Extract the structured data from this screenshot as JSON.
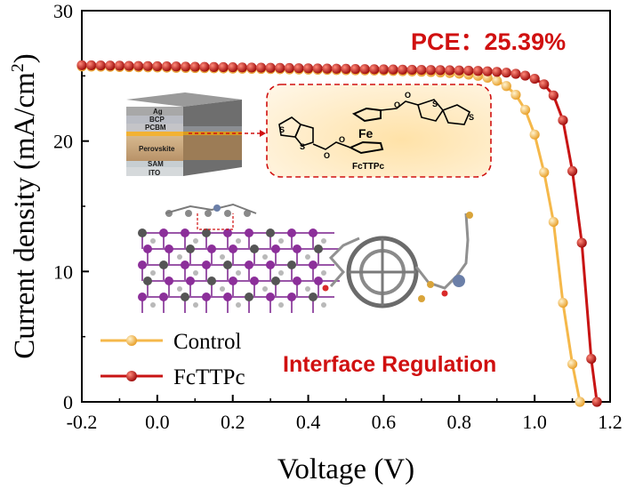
{
  "chart_data": {
    "type": "line",
    "xlabel": "Voltage (V)",
    "ylabel_main": "Current density (mA/cm",
    "ylabel_sup": "2",
    "ylabel_tail": ")",
    "xlim": [
      -0.2,
      1.2
    ],
    "ylim": [
      0,
      30
    ],
    "x_ticks": [
      "-0.2",
      "0.0",
      "0.2",
      "0.4",
      "0.6",
      "0.8",
      "1.0",
      "1.2"
    ],
    "y_ticks": [
      "0",
      "10",
      "20",
      "30"
    ],
    "grid": false,
    "legend_position": "bottom-left",
    "series": [
      {
        "name": "Control",
        "color": "#f5b84a",
        "x": [
          -0.2,
          -0.175,
          -0.15,
          -0.125,
          -0.1,
          -0.075,
          -0.05,
          -0.025,
          0.0,
          0.025,
          0.05,
          0.075,
          0.1,
          0.125,
          0.15,
          0.175,
          0.2,
          0.225,
          0.25,
          0.275,
          0.3,
          0.325,
          0.35,
          0.375,
          0.4,
          0.425,
          0.45,
          0.475,
          0.5,
          0.525,
          0.55,
          0.575,
          0.6,
          0.625,
          0.65,
          0.675,
          0.7,
          0.725,
          0.75,
          0.775,
          0.8,
          0.825,
          0.85,
          0.875,
          0.9,
          0.925,
          0.95,
          0.975,
          1.0,
          1.025,
          1.05,
          1.075,
          1.1,
          1.12
        ],
        "y": [
          25.72,
          25.71,
          25.7,
          25.69,
          25.68,
          25.67,
          25.66,
          25.65,
          25.64,
          25.63,
          25.62,
          25.61,
          25.6,
          25.59,
          25.58,
          25.57,
          25.56,
          25.55,
          25.54,
          25.53,
          25.52,
          25.51,
          25.5,
          25.49,
          25.48,
          25.47,
          25.46,
          25.45,
          25.44,
          25.43,
          25.42,
          25.41,
          25.4,
          25.38,
          25.36,
          25.34,
          25.32,
          25.29,
          25.26,
          25.22,
          25.17,
          25.1,
          25.0,
          24.86,
          24.62,
          24.22,
          23.55,
          22.4,
          20.5,
          17.6,
          13.8,
          7.6,
          2.9,
          0.0
        ]
      },
      {
        "name": "FcTTPc",
        "color": "#c81414",
        "x": [
          -0.2,
          -0.175,
          -0.15,
          -0.125,
          -0.1,
          -0.075,
          -0.05,
          -0.025,
          0.0,
          0.025,
          0.05,
          0.075,
          0.1,
          0.125,
          0.15,
          0.175,
          0.2,
          0.225,
          0.25,
          0.275,
          0.3,
          0.325,
          0.35,
          0.375,
          0.4,
          0.425,
          0.45,
          0.475,
          0.5,
          0.525,
          0.55,
          0.575,
          0.6,
          0.625,
          0.65,
          0.675,
          0.7,
          0.725,
          0.75,
          0.775,
          0.8,
          0.825,
          0.85,
          0.875,
          0.9,
          0.925,
          0.95,
          0.975,
          1.0,
          1.025,
          1.05,
          1.075,
          1.1,
          1.125,
          1.15,
          1.165
        ],
        "y": [
          25.82,
          25.81,
          25.8,
          25.79,
          25.78,
          25.77,
          25.76,
          25.75,
          25.74,
          25.73,
          25.72,
          25.71,
          25.7,
          25.69,
          25.68,
          25.67,
          25.66,
          25.65,
          25.64,
          25.63,
          25.62,
          25.61,
          25.6,
          25.59,
          25.58,
          25.57,
          25.56,
          25.55,
          25.54,
          25.53,
          25.52,
          25.51,
          25.5,
          25.49,
          25.48,
          25.47,
          25.46,
          25.45,
          25.44,
          25.43,
          25.42,
          25.4,
          25.38,
          25.35,
          25.31,
          25.25,
          25.16,
          25.02,
          24.78,
          24.35,
          23.5,
          21.6,
          17.7,
          12.2,
          3.3,
          0.0
        ]
      }
    ],
    "annotations": {
      "pce": "PCE：25.39%",
      "interface": "Interface Regulation",
      "molecule_name": "FcTTPc",
      "fe_label": "Fe",
      "s_label": "S",
      "o_label": "O",
      "device_layers": [
        "Ag",
        "BCP",
        "PCBM",
        "Perovskite",
        "SAM",
        "ITO"
      ]
    }
  }
}
